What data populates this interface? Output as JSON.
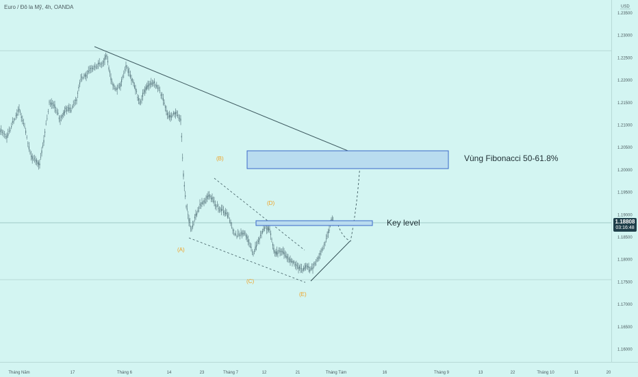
{
  "header": {
    "title": "Euro / Đô la Mỹ, 4h, OANDA"
  },
  "price_axis": {
    "currency": "USD",
    "ticks": [
      "1.23500",
      "1.23000",
      "1.22500",
      "1.22000",
      "1.21500",
      "1.21000",
      "1.20500",
      "1.20000",
      "1.19500",
      "1.19000",
      "1.18500",
      "1.18000",
      "1.17500",
      "1.17000",
      "1.16500",
      "1.16000"
    ],
    "current_price": "1.18808",
    "countdown": "03:16:48"
  },
  "time_axis": {
    "labels": [
      "Tháng Năm",
      "17",
      "Tháng 6",
      "14",
      "23",
      "Tháng 7",
      "12",
      "21",
      "Tháng Tám",
      "16",
      "Tháng 9",
      "13",
      "22",
      "Tháng 10",
      "11",
      "20"
    ]
  },
  "wave_labels": [
    "(A)",
    "(B)",
    "(C)",
    "(D)",
    "(E)"
  ],
  "annotations": {
    "fib_zone": "Vùng Fibonacci 50-61.8%",
    "key_level": "Key level"
  },
  "colors": {
    "background": "#d3f5f2",
    "candles": "#5e7d84",
    "trendline": "#3e5a60",
    "wave_label": "#f0a020",
    "zone_fill": "#b9dcef",
    "zone_border": "#3a68c8",
    "price_tag": "#1f3f4a"
  }
}
